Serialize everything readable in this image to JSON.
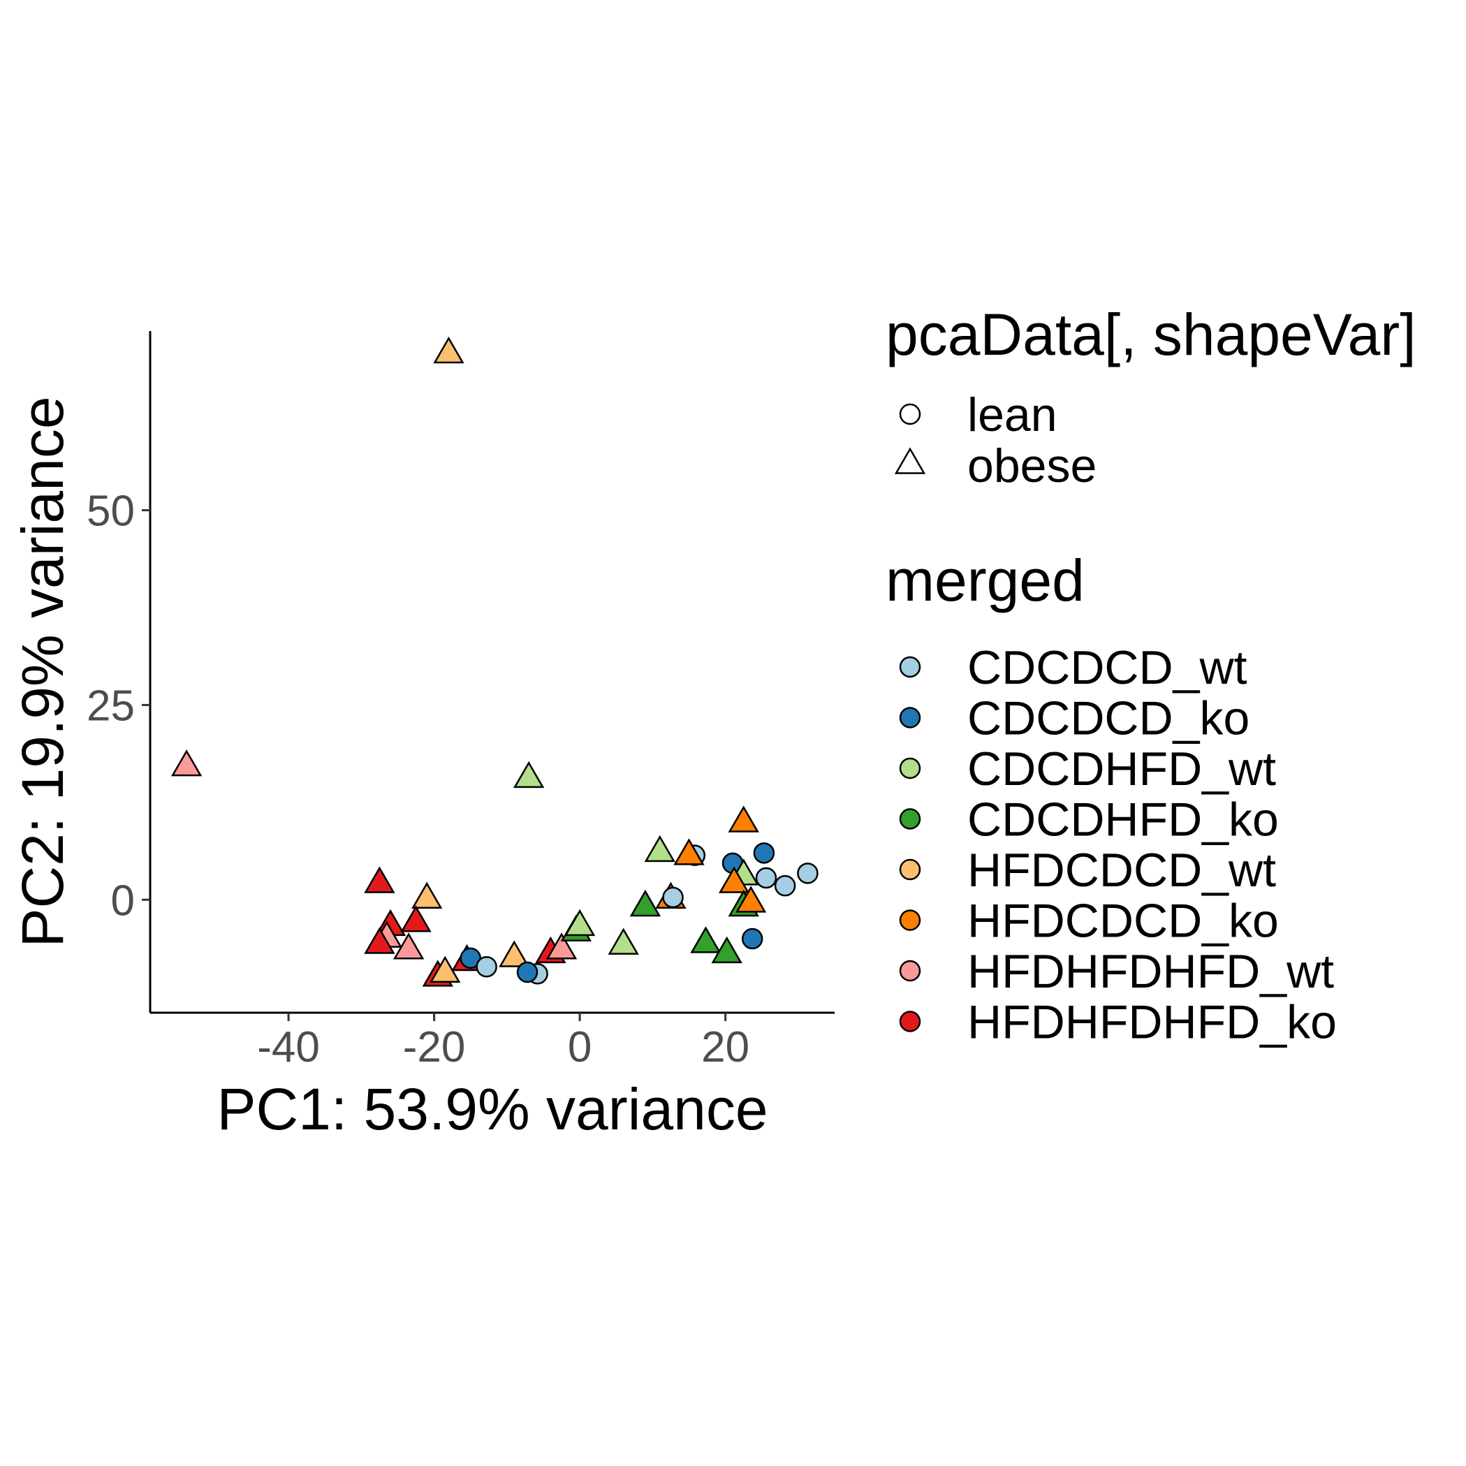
{
  "chart_data": {
    "type": "scatter",
    "title": "",
    "xlabel": "PC1: 53.9% variance",
    "ylabel": "PC2: 19.9% variance",
    "xlim": [
      -59,
      35
    ],
    "ylim": [
      -14.5,
      73
    ],
    "x_ticks": [
      -40,
      -20,
      0,
      20
    ],
    "x_tick_labels": [
      "-40",
      "-20",
      "0",
      "20"
    ],
    "y_ticks": [
      0,
      25,
      50
    ],
    "y_tick_labels": [
      "0",
      "25",
      "50"
    ],
    "grid": false,
    "shape_legend": {
      "title": "pcaData[, shapeVar]",
      "items": [
        {
          "label": "lean",
          "shape": "circle"
        },
        {
          "label": "obese",
          "shape": "triangle"
        }
      ]
    },
    "color_legend": {
      "title": "merged",
      "items": [
        {
          "label": "CDCDCD_wt",
          "color": "#a6cee3"
        },
        {
          "label": "CDCDCD_ko",
          "color": "#1f78b4"
        },
        {
          "label": "CDCDHFD_wt",
          "color": "#b2df8a"
        },
        {
          "label": "CDCDHFD_ko",
          "color": "#33a02c"
        },
        {
          "label": "HFDCDCD_wt",
          "color": "#fdbf6f"
        },
        {
          "label": "HFDCDCD_ko",
          "color": "#ff7f00"
        },
        {
          "label": "HFDHFDHFD_wt",
          "color": "#fb9a99"
        },
        {
          "label": "HFDHFDHFD_ko",
          "color": "#e31a1c"
        }
      ]
    },
    "points": [
      {
        "x": -18,
        "y": 70,
        "group": "HFDCDCD_wt",
        "shape": "triangle"
      },
      {
        "x": -54,
        "y": 17,
        "group": "HFDHFDHFD_wt",
        "shape": "triangle"
      },
      {
        "x": -7,
        "y": 15.5,
        "group": "CDCDHFD_wt",
        "shape": "triangle"
      },
      {
        "x": -27.5,
        "y": 2,
        "group": "HFDHFDHFD_ko",
        "shape": "triangle"
      },
      {
        "x": -21,
        "y": 0,
        "group": "HFDCDCD_wt",
        "shape": "triangle"
      },
      {
        "x": -26,
        "y": -3.5,
        "group": "HFDHFDHFD_ko",
        "shape": "triangle"
      },
      {
        "x": -22.5,
        "y": -3,
        "group": "HFDHFDHFD_ko",
        "shape": "triangle"
      },
      {
        "x": -26.5,
        "y": -5,
        "group": "HFDHFDHFD_wt",
        "shape": "triangle"
      },
      {
        "x": -27.5,
        "y": -5.8,
        "group": "HFDHFDHFD_ko",
        "shape": "triangle"
      },
      {
        "x": -23.5,
        "y": -6.5,
        "group": "HFDHFDHFD_wt",
        "shape": "triangle"
      },
      {
        "x": -19.5,
        "y": -10,
        "group": "HFDHFDHFD_ko",
        "shape": "triangle"
      },
      {
        "x": -18.5,
        "y": -9.5,
        "group": "HFDCDCD_wt",
        "shape": "triangle"
      },
      {
        "x": -15.5,
        "y": -8,
        "group": "HFDHFDHFD_ko",
        "shape": "triangle"
      },
      {
        "x": -15,
        "y": -7.5,
        "group": "CDCDCD_ko",
        "shape": "circle"
      },
      {
        "x": -12.8,
        "y": -8.6,
        "group": "CDCDCD_wt",
        "shape": "circle"
      },
      {
        "x": -9,
        "y": -7.5,
        "group": "HFDCDCD_wt",
        "shape": "triangle"
      },
      {
        "x": -5.8,
        "y": -9.5,
        "group": "CDCDCD_wt",
        "shape": "circle"
      },
      {
        "x": -7.2,
        "y": -9.3,
        "group": "CDCDCD_ko",
        "shape": "circle"
      },
      {
        "x": -4,
        "y": -7,
        "group": "HFDHFDHFD_ko",
        "shape": "triangle"
      },
      {
        "x": -2.5,
        "y": -6.5,
        "group": "HFDHFDHFD_wt",
        "shape": "triangle"
      },
      {
        "x": -0.5,
        "y": -4.2,
        "group": "CDCDHFD_ko",
        "shape": "triangle"
      },
      {
        "x": 0,
        "y": -3.5,
        "group": "CDCDHFD_wt",
        "shape": "triangle"
      },
      {
        "x": 6,
        "y": -5.9,
        "group": "CDCDHFD_wt",
        "shape": "triangle"
      },
      {
        "x": 9,
        "y": -1,
        "group": "CDCDHFD_ko",
        "shape": "triangle"
      },
      {
        "x": 12.5,
        "y": 0,
        "group": "HFDCDCD_ko",
        "shape": "triangle"
      },
      {
        "x": 12.8,
        "y": 0.3,
        "group": "CDCDCD_wt",
        "shape": "circle"
      },
      {
        "x": 11,
        "y": 6,
        "group": "CDCDHFD_wt",
        "shape": "triangle"
      },
      {
        "x": 15.8,
        "y": 5.7,
        "group": "CDCDCD_wt",
        "shape": "circle"
      },
      {
        "x": 15,
        "y": 5.6,
        "group": "HFDCDCD_ko",
        "shape": "triangle"
      },
      {
        "x": 17.3,
        "y": -5.7,
        "group": "CDCDHFD_ko",
        "shape": "triangle"
      },
      {
        "x": 20.2,
        "y": -7,
        "group": "CDCDHFD_ko",
        "shape": "triangle"
      },
      {
        "x": 22.5,
        "y": 9.8,
        "group": "HFDCDCD_ko",
        "shape": "triangle"
      },
      {
        "x": 21,
        "y": 4.7,
        "group": "CDCDCD_ko",
        "shape": "circle"
      },
      {
        "x": 22.5,
        "y": 3,
        "group": "CDCDHFD_wt",
        "shape": "triangle"
      },
      {
        "x": 21.2,
        "y": 2,
        "group": "HFDCDCD_ko",
        "shape": "triangle"
      },
      {
        "x": 22.5,
        "y": -1,
        "group": "CDCDHFD_ko",
        "shape": "triangle"
      },
      {
        "x": 23.5,
        "y": -0.5,
        "group": "HFDCDCD_ko",
        "shape": "triangle"
      },
      {
        "x": 23.7,
        "y": -5,
        "group": "CDCDCD_ko",
        "shape": "circle"
      },
      {
        "x": 25.3,
        "y": 6,
        "group": "CDCDCD_ko",
        "shape": "circle"
      },
      {
        "x": 25.6,
        "y": 2.8,
        "group": "CDCDCD_wt",
        "shape": "circle"
      },
      {
        "x": 28.2,
        "y": 1.8,
        "group": "CDCDCD_wt",
        "shape": "circle"
      },
      {
        "x": 31.3,
        "y": 3.4,
        "group": "CDCDCD_wt",
        "shape": "circle"
      }
    ]
  }
}
